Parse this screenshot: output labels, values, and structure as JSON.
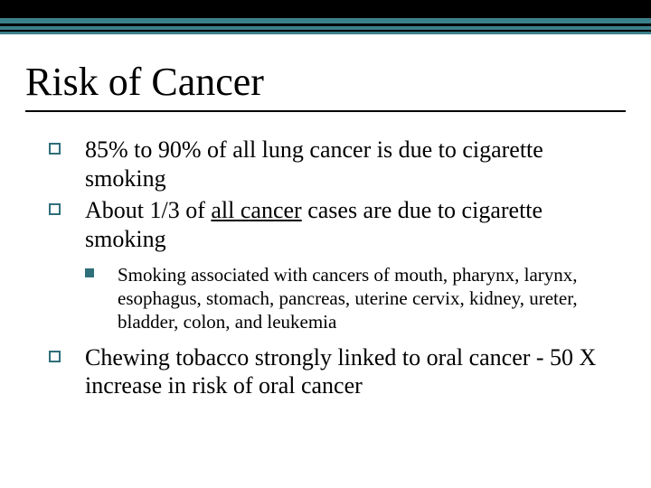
{
  "slide": {
    "header": {
      "bars": [
        {
          "height": 20,
          "color": "#000000"
        },
        {
          "height": 6,
          "color": "#3b808b"
        },
        {
          "height": 3,
          "color": "#000000"
        },
        {
          "height": 4,
          "color": "#3b808b"
        },
        {
          "height": 2,
          "color": "#000000"
        },
        {
          "height": 3,
          "color": "#3b808b"
        }
      ]
    },
    "title": "Risk of Cancer",
    "title_fontsize": 44,
    "body_fontsize": 26,
    "sub_fontsize": 21,
    "bullet_border_color": "#2f6f7a",
    "bullets": {
      "b1": "85% to 90% of all lung cancer is due to cigarette smoking",
      "b2_pre": "About 1/3 of ",
      "b2_ul": "all cancer",
      "b2_post": " cases are due to cigarette smoking",
      "b2_sub": "Smoking associated with cancers of mouth, pharynx, larynx, esophagus, stomach, pancreas, uterine cervix, kidney, ureter, bladder, colon, and leukemia",
      "b3": "Chewing tobacco strongly linked to oral cancer - 50 X increase in risk of oral cancer"
    }
  }
}
